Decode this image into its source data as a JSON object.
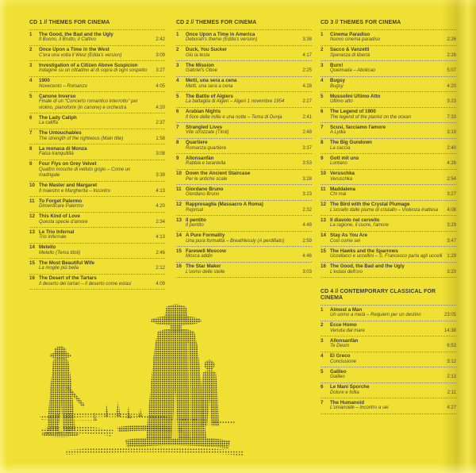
{
  "page": {
    "background": "#F0E033",
    "ink": "#45442F",
    "rule_color": "#8A855C",
    "halftone_ink": "#3D3B26"
  },
  "illustration": {
    "name": "western-figures-halftone",
    "description": "halftone dot illustration of three figures in hats and long coats standing on scrubland"
  },
  "discs": [
    {
      "id": "cd1",
      "title": "CD 1 // THEMES FOR CINEMA",
      "tracks": [
        {
          "n": "1",
          "title": "The Good, the Bad and the Ugly",
          "subtitle": "Il Buono, il Brutto, il Cattivo",
          "time": "2:42"
        },
        {
          "n": "2",
          "title": "Once Upon a Time in the West",
          "subtitle": "C'era una volta il West (Edda's version)",
          "time": "3:09"
        },
        {
          "n": "3",
          "title": "Investigation of a Citizen Above Suspicion",
          "subtitle": "Indagine su un cittadino al di sopra di ogni sospetto",
          "time": "3:27"
        },
        {
          "n": "4",
          "title": "1900",
          "subtitle": "Novecento – Romanzo",
          "time": "4:05"
        },
        {
          "n": "5",
          "title": "Canone Inverso",
          "subtitle": "Finale di un “Concerto romantico interrotto” per violino, pianoforte (in canone) e orchestra",
          "time": "4:20"
        },
        {
          "n": "6",
          "title": "The Lady Caliph",
          "subtitle": "La califfa",
          "time": "2:37"
        },
        {
          "n": "7",
          "title": "The Untouchables",
          "subtitle": "The strength of the righteous (Main title)",
          "time": "1:58"
        },
        {
          "n": "8",
          "title": "La monaca di Monza",
          "subtitle": "Falsa tranquillità",
          "time": "3:08"
        },
        {
          "n": "9",
          "title": "Four Flys on Grey Velvet",
          "subtitle": "Quattro mosche di velluto grigio – Come un madrigale",
          "time": "3:39"
        },
        {
          "n": "10",
          "title": "The Master and Margaret",
          "subtitle": "Il maestro e Margherita – Incontro",
          "time": "4:13"
        },
        {
          "n": "11",
          "title": "To Forget Palermo",
          "subtitle": "Dimenticare Palermo",
          "time": "4:20"
        },
        {
          "n": "12",
          "title": "This Kind of Love",
          "subtitle": "Questa specie d'amore",
          "time": "2:34"
        },
        {
          "n": "13",
          "title": "Le Trio Infernal",
          "subtitle": "Trio infernale",
          "time": "4:13"
        },
        {
          "n": "14",
          "title": "Metello",
          "subtitle": "Metello (Tema titoli)",
          "time": "2:46"
        },
        {
          "n": "15",
          "title": "The Most Beautiful Wife",
          "subtitle": "La moglie più bella",
          "time": "2:12"
        },
        {
          "n": "16",
          "title": "The Desert of the Tartars",
          "subtitle": "Il deserto dei tartari – Il deserto come estasi",
          "time": "4:09"
        }
      ]
    },
    {
      "id": "cd2",
      "title": "CD 2 // THEMES FOR CINEMA",
      "tracks": [
        {
          "n": "1",
          "title": "Once Upon a Time in America",
          "subtitle": "Deborah's theme (Edda's version)",
          "time": "3:38"
        },
        {
          "n": "2",
          "title": "Duck, You Sucker",
          "subtitle": "Giù la testa",
          "time": "4:17"
        },
        {
          "n": "3",
          "title": "The Mission",
          "subtitle": "Gabriel's Oboe",
          "time": "2:25"
        },
        {
          "n": "4",
          "title": "Metti, una sera a cena",
          "subtitle": "Metti, una sera a cena",
          "time": "4:28"
        },
        {
          "n": "5",
          "title": "The Battle of Algiers",
          "subtitle": "La battaglia di Algeri – Algeri 1 novembre 1954",
          "time": "2:27"
        },
        {
          "n": "6",
          "title": "Arabian Nights",
          "subtitle": "Il fiore delle mille e una notte – Tema di Dunja",
          "time": "2:41"
        },
        {
          "n": "7",
          "title": "Strangled Lives",
          "subtitle": "Vite strozzate (Titoli)",
          "time": "2:48"
        },
        {
          "n": "8",
          "title": "Quartiere",
          "subtitle": "Romanza quartiere",
          "time": "3:37"
        },
        {
          "n": "9",
          "title": "Allonsanfàn",
          "subtitle": "Rabbia e tarantella",
          "time": "3:53"
        },
        {
          "n": "10",
          "title": "Down the Ancient Staircase",
          "subtitle": "Per le antiche scale",
          "time": "3:28"
        },
        {
          "n": "11",
          "title": "Giordano Bruno",
          "subtitle": "Giordano Bruno",
          "time": "3:23"
        },
        {
          "n": "12",
          "title": "Rappresaglia (Massacro A Roma)",
          "subtitle": "Reprisal",
          "time": "2:32"
        },
        {
          "n": "13",
          "title": "Il pentito",
          "subtitle": "Il pentito",
          "time": "4:48"
        },
        {
          "n": "14",
          "title": "A Pure Formality",
          "subtitle": "Una pura formalità – Breathlessly (A perdifiato)",
          "time": "2:59"
        },
        {
          "n": "15",
          "title": "Farewell Moscow",
          "subtitle": "Mosca addio",
          "time": "4:46"
        },
        {
          "n": "16",
          "title": "The Star Maker",
          "subtitle": "L'uomo delle stelle",
          "time": "3:03"
        }
      ]
    },
    {
      "id": "cd3",
      "title": "CD 3 // THEMES FOR CINEMA",
      "tracks": [
        {
          "n": "1",
          "title": "Cinema Paradiso",
          "subtitle": "Nuovo cinema paradiso",
          "time": "2:26"
        },
        {
          "n": "2",
          "title": "Sacco & Vanzetti",
          "subtitle": "Speranza di libertà",
          "time": "2:26"
        },
        {
          "n": "3",
          "title": "Burn!",
          "subtitle": "Queimada – Abolicao",
          "time": "5:07"
        },
        {
          "n": "4",
          "title": "Bugsy",
          "subtitle": "Bugsy",
          "time": "4:20"
        },
        {
          "n": "5",
          "title": "Mussolini Ultimo Atto",
          "subtitle": "Ultimo atto",
          "time": "3:23"
        },
        {
          "n": "6",
          "title": "The Legend of 1900",
          "subtitle": "The legend of the pianist on the ocean",
          "time": "7:33"
        },
        {
          "n": "7",
          "title": "Scusi, facciamo l'amore",
          "subtitle": "A Lydia",
          "time": "3:19"
        },
        {
          "n": "8",
          "title": "The Big Gundown",
          "subtitle": "La caccia",
          "time": "2:40"
        },
        {
          "n": "9",
          "title": "Gott mit uns",
          "subtitle": "Lontano",
          "time": "4:26"
        },
        {
          "n": "10",
          "title": "Veruschka",
          "subtitle": "Veruschka",
          "time": "2:54"
        },
        {
          "n": "11",
          "title": "Maddalena",
          "subtitle": "Chi mai",
          "time": "3:27"
        },
        {
          "n": "12",
          "title": "The Bird with the Crystal Plumage",
          "subtitle": "L'uccello dalle piume di cristallo – Violenza inattesa",
          "time": "4:08"
        },
        {
          "n": "13",
          "title": "Il diavolo nel cervello",
          "subtitle": "La ragione, il cuore, l'amore",
          "time": "3:29"
        },
        {
          "n": "14",
          "title": "Stay As You Are",
          "subtitle": "Così come sei",
          "time": "3:47"
        },
        {
          "n": "15",
          "title": "The Hawks and the Sparrows",
          "subtitle": "Uccellacci e uccellini – S. Francesco parla agli uccelli",
          "time": "1:29"
        },
        {
          "n": "16",
          "title": "The Good, the Bad and the Ugly",
          "subtitle": "L'estasi dell'oro",
          "time": "3:20"
        }
      ]
    },
    {
      "id": "cd4",
      "title": "CD 4 // CONTEMPORARY CLASSICAL FOR CINEMA",
      "tracks": [
        {
          "n": "1",
          "title": "Almost a Man",
          "subtitle": "Un uomo a metà – Requiem per un destino",
          "time": "23:05"
        },
        {
          "n": "2",
          "title": "Ecce Homo",
          "subtitle": "Venuta dal mare",
          "time": "14:38"
        },
        {
          "n": "3",
          "title": "Allonsanfàn",
          "subtitle": "Te Deum",
          "time": "6:53"
        },
        {
          "n": "4",
          "title": "El Greco",
          "subtitle": "Conclusione",
          "time": "3:12"
        },
        {
          "n": "5",
          "title": "Galileo",
          "subtitle": "Galileo",
          "time": "2:13"
        },
        {
          "n": "6",
          "title": "Le Mani Sporche",
          "subtitle": "Dolore e follia",
          "time": "2:11"
        },
        {
          "n": "7",
          "title": "The Humanoid",
          "subtitle": "L'umanoide – Incontro a sei",
          "time": "4:27"
        }
      ]
    }
  ]
}
